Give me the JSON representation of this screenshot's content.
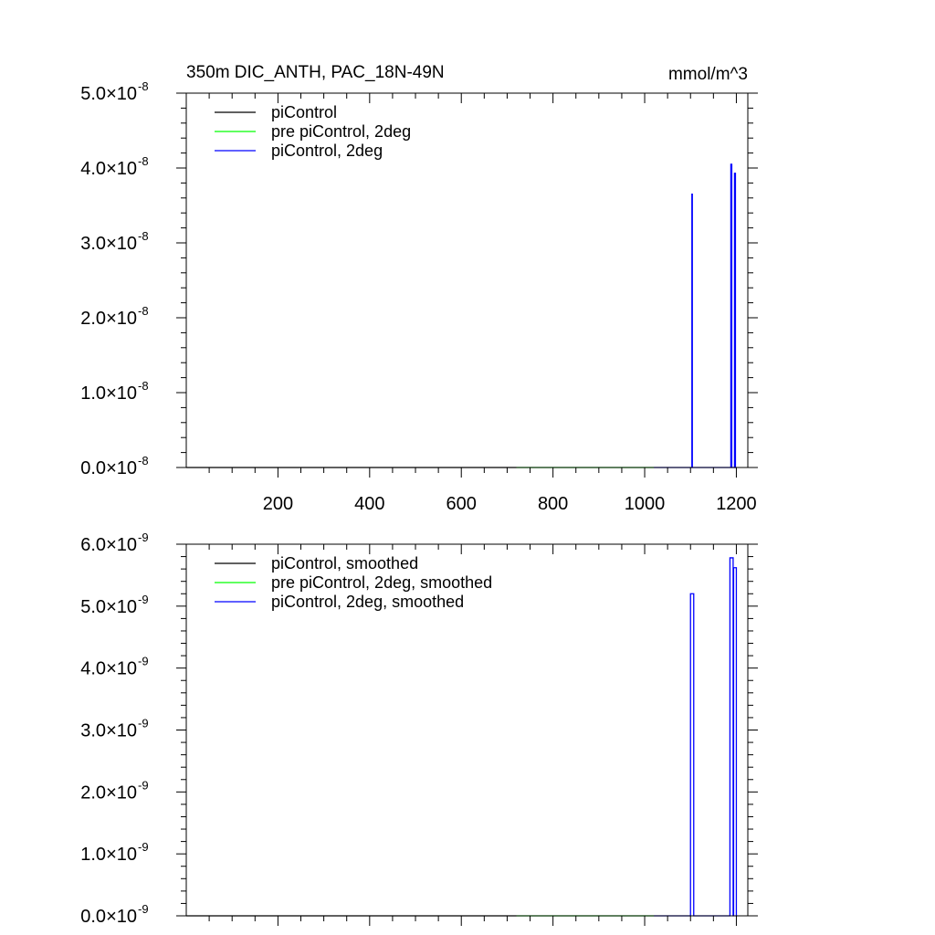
{
  "chart_data": [
    {
      "type": "line",
      "title": "350m DIC_ANTH, PAC_18N-49N",
      "units": "mmol/m^3",
      "xlim": [
        0,
        1225
      ],
      "ylim": [
        0,
        5e-08
      ],
      "x_ticks": [
        200,
        400,
        600,
        800,
        1000,
        1200
      ],
      "x_tick_labels": [
        "200",
        "400",
        "600",
        "800",
        "1000",
        "1200"
      ],
      "y_ticks": [
        0,
        1e-08,
        2e-08,
        3e-08,
        4e-08,
        5e-08
      ],
      "y_tick_labels": [
        {
          "mant": "0.0",
          "exp": "-8"
        },
        {
          "mant": "1.0",
          "exp": "-8"
        },
        {
          "mant": "2.0",
          "exp": "-8"
        },
        {
          "mant": "3.0",
          "exp": "-8"
        },
        {
          "mant": "4.0",
          "exp": "-8"
        },
        {
          "mant": "5.0",
          "exp": "-8"
        }
      ],
      "legend_position": "top-left",
      "series": [
        {
          "name": "piControl",
          "color": "#000000",
          "x": [
            0,
            720
          ],
          "y": [
            0,
            0
          ]
        },
        {
          "name": "pre piControl, 2deg",
          "color": "#00ff00",
          "x": [
            720,
            1020
          ],
          "y": [
            0,
            0
          ]
        },
        {
          "name": "piControl, 2deg",
          "color": "#0000ff",
          "x": [
            1020,
            1103,
            1103,
            1104,
            1104,
            1188,
            1188,
            1190,
            1190,
            1196,
            1196,
            1198,
            1198,
            1200
          ],
          "y": [
            0,
            0,
            3.65e-08,
            3.65e-08,
            0,
            0,
            4.05e-08,
            4.05e-08,
            0,
            0,
            3.93e-08,
            3.93e-08,
            0,
            0
          ]
        }
      ]
    },
    {
      "type": "line",
      "title": "",
      "xlim": [
        0,
        1225
      ],
      "ylim": [
        0,
        6e-09
      ],
      "x_ticks": [
        200,
        400,
        600,
        800,
        1000,
        1200
      ],
      "x_tick_labels": [],
      "y_ticks": [
        0,
        1e-09,
        2e-09,
        3e-09,
        4e-09,
        5e-09,
        6e-09
      ],
      "y_tick_labels": [
        {
          "mant": "0.0",
          "exp": "-9"
        },
        {
          "mant": "1.0",
          "exp": "-9"
        },
        {
          "mant": "2.0",
          "exp": "-9"
        },
        {
          "mant": "3.0",
          "exp": "-9"
        },
        {
          "mant": "4.0",
          "exp": "-9"
        },
        {
          "mant": "5.0",
          "exp": "-9"
        },
        {
          "mant": "6.0",
          "exp": "-9"
        }
      ],
      "legend_position": "top-left",
      "series": [
        {
          "name": "piControl, smoothed",
          "color": "#000000",
          "x": [
            0,
            720
          ],
          "y": [
            0,
            0
          ]
        },
        {
          "name": "pre piControl, 2deg, smoothed",
          "color": "#00ff00",
          "x": [
            720,
            1020
          ],
          "y": [
            0,
            0
          ]
        },
        {
          "name": "piControl, 2deg, smoothed",
          "color": "#0000ff",
          "x": [
            1020,
            1100,
            1100,
            1107,
            1107,
            1186,
            1186,
            1193,
            1193,
            1194,
            1194,
            1200,
            1200,
            1202
          ],
          "y": [
            0,
            0,
            5.2e-09,
            5.2e-09,
            0,
            0,
            5.78e-09,
            5.78e-09,
            0,
            0,
            5.62e-09,
            5.62e-09,
            0,
            0
          ]
        }
      ]
    }
  ]
}
